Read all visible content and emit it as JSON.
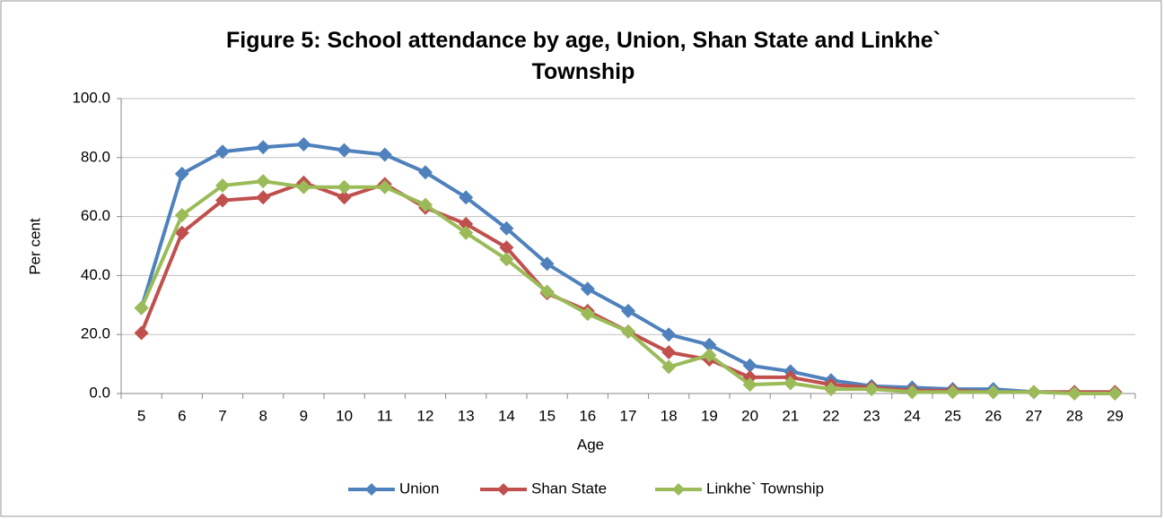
{
  "chart_data": {
    "type": "line",
    "title": "Figure 5: School attendance by age, Union, Shan State and Linkhe` Township",
    "x_label": "Age",
    "y_label": "Per cent",
    "categories": [
      "5",
      "6",
      "7",
      "8",
      "9",
      "10",
      "11",
      "12",
      "13",
      "14",
      "15",
      "16",
      "17",
      "18",
      "19",
      "20",
      "21",
      "22",
      "23",
      "24",
      "25",
      "26",
      "27",
      "28",
      "29"
    ],
    "series": [
      {
        "name": "Union",
        "color": "#4f81bd",
        "values": [
          29,
          74.5,
          82,
          83.5,
          84.5,
          82.5,
          81,
          75,
          66.5,
          56,
          44,
          35.5,
          28,
          20,
          16.5,
          9.5,
          7.5,
          4.5,
          2.5,
          2,
          1.5,
          1.5,
          0.5,
          0.5,
          0.5
        ]
      },
      {
        "name": "Shan State",
        "color": "#c0504d",
        "values": [
          20.5,
          54.5,
          65.5,
          66.5,
          71.5,
          66.5,
          71,
          63,
          57.5,
          49.5,
          34,
          28,
          21,
          14,
          11.5,
          5.5,
          5.5,
          3,
          2,
          1,
          1,
          0.5,
          0.5,
          0.5,
          0.5
        ]
      },
      {
        "name": "Linkhe` Township",
        "color": "#9bbb59",
        "values": [
          29,
          60.5,
          70.5,
          72,
          70,
          70,
          70,
          64,
          54.5,
          45.5,
          34.5,
          27,
          21,
          9,
          13,
          3,
          3.5,
          1.5,
          1.5,
          0.5,
          0.5,
          0.5,
          0.5,
          0,
          0
        ]
      }
    ],
    "ylim": [
      0,
      100
    ],
    "yticks": [
      {
        "value": 0,
        "label": "0.0"
      },
      {
        "value": 20,
        "label": "20.0"
      },
      {
        "value": 40,
        "label": "40.0"
      },
      {
        "value": 60,
        "label": "60.0"
      },
      {
        "value": 80,
        "label": "80.0"
      },
      {
        "value": 100,
        "label": "100.0"
      }
    ],
    "grid": true,
    "legend": "bottom"
  }
}
